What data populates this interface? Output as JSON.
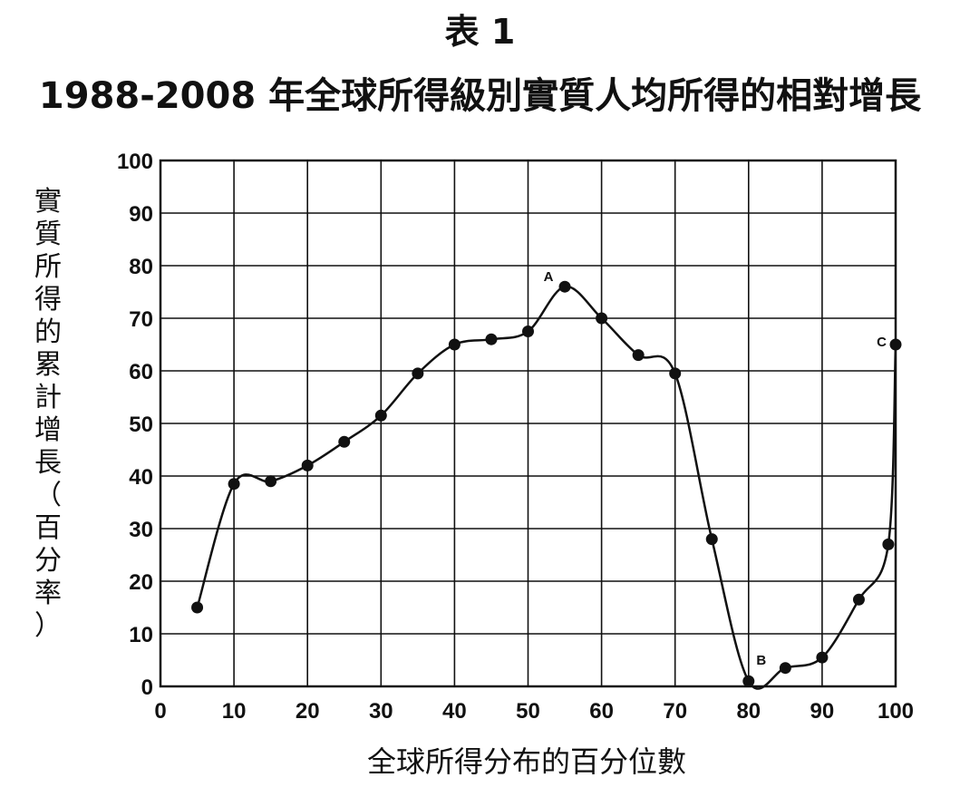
{
  "title": "表 1",
  "subtitle": "1988-2008 年全球所得級別實質人均所得的相對增長",
  "ylabel_chars": [
    "實",
    "質",
    "所",
    "得",
    "的",
    "累",
    "計",
    "增",
    "長",
    "（",
    "百",
    "分",
    "率",
    "）"
  ],
  "xlabel": "全球所得分布的百分位數",
  "chart_data": {
    "type": "line",
    "title": "1988-2008 年全球所得級別實質人均所得的相對增長",
    "xlabel": "全球所得分布的百分位數",
    "ylabel": "實質所得的累計增長（百分率）",
    "xlim": [
      0,
      100
    ],
    "ylim": [
      0,
      100
    ],
    "x_ticks": [
      "0",
      "10",
      "20",
      "30",
      "40",
      "50",
      "60",
      "70",
      "80",
      "90",
      "100"
    ],
    "y_ticks": [
      "0",
      "10",
      "20",
      "30",
      "40",
      "50",
      "60",
      "70",
      "80",
      "90",
      "100"
    ],
    "grid": true,
    "series": [
      {
        "x": [
          5,
          10,
          15,
          20,
          25,
          30,
          35,
          40,
          45,
          50,
          55,
          60,
          65,
          70,
          75,
          80,
          85,
          90,
          95,
          99,
          100
        ],
        "y": [
          15,
          38.5,
          39,
          42,
          46.5,
          51.5,
          59.5,
          65,
          66,
          67.5,
          76,
          70,
          63,
          59.5,
          28,
          1,
          3.5,
          5.5,
          16.5,
          27,
          65
        ]
      }
    ],
    "annotations": [
      {
        "label": "A",
        "x": 55,
        "y": 76
      },
      {
        "label": "B",
        "x": 80,
        "y": 1
      },
      {
        "label": "C",
        "x": 100,
        "y": 65
      }
    ]
  }
}
